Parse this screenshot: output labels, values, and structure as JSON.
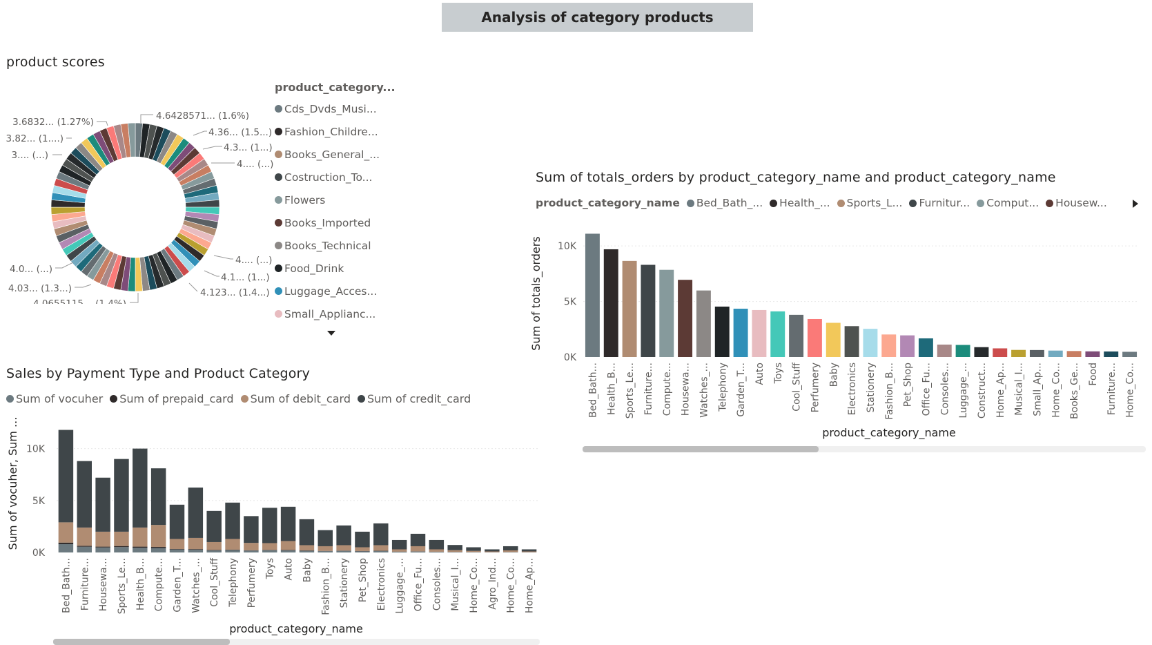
{
  "page": {
    "title": "Analysis of category products"
  },
  "colors": {
    "series": [
      "#6c7a80",
      "#2f2a2a",
      "#b08c72",
      "#3f4649",
      "#869a9c",
      "#5c3a35",
      "#8c8886",
      "#1f2426",
      "#3090b8",
      "#e8bcc0",
      "#44c8b8",
      "#646c70",
      "#fa7a78",
      "#f2c85a",
      "#4e5250",
      "#a6dcea",
      "#fca890",
      "#b288b4",
      "#1e6a7a",
      "#a88888",
      "#1c8c7c",
      "#262a2c",
      "#cc4c4c",
      "#baa030",
      "#5a6064",
      "#72aac0",
      "#c87e62",
      "#7e4c78",
      "#1c4c5c"
    ],
    "vocuher": "#6c7a80",
    "prepaid": "#2f2a2a",
    "debit": "#b08c72",
    "credit": "#3f4649",
    "scrollbar_thumb": "#bdbdbd",
    "scrollbar_track": "#f0f0f0"
  },
  "donut": {
    "title": "product scores",
    "legend_title": "product_category...",
    "legend_items": [
      {
        "label": "Cds_Dvds_Musi...",
        "color": "#6c7a80"
      },
      {
        "label": "Fashion_Childre...",
        "color": "#2f2a2a"
      },
      {
        "label": "Books_General_...",
        "color": "#b08c72"
      },
      {
        "label": "Costruction_To...",
        "color": "#3f4649"
      },
      {
        "label": "Flowers",
        "color": "#869a9c"
      },
      {
        "label": "Books_Imported",
        "color": "#5c3a35"
      },
      {
        "label": "Books_Technical",
        "color": "#8c8886"
      },
      {
        "label": "Food_Drink",
        "color": "#1f2426"
      },
      {
        "label": "Luggage_Acces...",
        "color": "#3090b8"
      },
      {
        "label": "Small_Applianc...",
        "color": "#e8bcc0"
      }
    ],
    "scroll_icon": "triangle-down-icon",
    "labels": [
      {
        "text": "4.6428571... (1.6%)"
      },
      {
        "text": "4.36... (1.5...)"
      },
      {
        "text": "4.3... (1...)"
      },
      {
        "text": "4.... (...)"
      },
      {
        "text": "4.... (...)"
      },
      {
        "text": "4.1... (1...)"
      },
      {
        "text": "4.123... (1.4...)"
      },
      {
        "text": "4.0655115... (1.4%)"
      },
      {
        "text": "4.03... (1.3...)"
      },
      {
        "text": "4.0... (...)"
      },
      {
        "text": "3.... (...)"
      },
      {
        "text": "3.82... (1....)"
      },
      {
        "text": "3.6832... (1.27%)"
      }
    ]
  },
  "orders_chart": {
    "legend_title": "product_category_name",
    "legend_items": [
      {
        "label": "Bed_Bath_...",
        "color": "#6c7a80"
      },
      {
        "label": "Health_...",
        "color": "#2f2a2a"
      },
      {
        "label": "Sports_L...",
        "color": "#b08c72"
      },
      {
        "label": "Furnitur...",
        "color": "#3f4649"
      },
      {
        "label": "Comput...",
        "color": "#869a9c"
      },
      {
        "label": "Housew...",
        "color": "#5c3a35"
      }
    ],
    "legend_next_icon": "triangle-right-icon"
  },
  "payment_chart": {
    "legend_items": [
      {
        "label": "Sum of vocuher",
        "color": "#6c7a80"
      },
      {
        "label": "Sum of prepaid_card",
        "color": "#2f2a2a"
      },
      {
        "label": "Sum of debit_card",
        "color": "#b08c72"
      },
      {
        "label": "Sum of credit_card",
        "color": "#3f4649"
      }
    ]
  },
  "chart_data": [
    {
      "type": "pie",
      "title": "product scores",
      "legend_title": "product_category...",
      "slice_count": 72,
      "visible_categories": [
        "Cds_Dvds_Musi...",
        "Fashion_Childre...",
        "Books_General_...",
        "Costruction_To...",
        "Flowers",
        "Books_Imported",
        "Books_Technical",
        "Food_Drink",
        "Luggage_Acces...",
        "Small_Applianc..."
      ],
      "labeled_values": [
        4.6428571,
        4.36,
        4.3,
        4.123,
        4.1,
        4.0655115,
        4.03,
        4.0,
        3.82,
        3.6832
      ],
      "labeled_percents": [
        1.6,
        1.5,
        1.4,
        1.4,
        1.3,
        1.27
      ]
    },
    {
      "type": "bar",
      "title": "Sum of totals_orders by product_category_name and product_category_name",
      "xlabel": "product_category_name",
      "ylabel": "Sum of totals_orders",
      "yticks": [
        "0K",
        "5K",
        "10K"
      ],
      "ylim": [
        0,
        11500
      ],
      "categories": [
        "Bed_Bath...",
        "Health_B...",
        "Sports_Le...",
        "Furniture...",
        "Compute...",
        "Housewa...",
        "Watches_...",
        "Telephony",
        "Garden_T...",
        "Auto",
        "Toys",
        "Cool_Stuff",
        "Perfumery",
        "Baby",
        "Electronics",
        "Stationery",
        "Fashion_B...",
        "Pet_Shop",
        "Office_Fu...",
        "Consoles...",
        "Luggage_...",
        "Construct...",
        "Home_Ap...",
        "Musical_I...",
        "Small_Ap...",
        "Home_Co...",
        "Books_Ge...",
        "Food",
        "Furniture...",
        "Home_Co..."
      ],
      "values": [
        11100,
        9700,
        8650,
        8300,
        7850,
        6950,
        5990,
        4540,
        4350,
        4230,
        4110,
        3800,
        3420,
        3080,
        2780,
        2540,
        2030,
        1950,
        1680,
        1120,
        1090,
        890,
        780,
        640,
        630,
        580,
        540,
        510,
        500,
        470
      ]
    },
    {
      "type": "bar",
      "stacked": true,
      "title": "Sales by Payment Type and Product Category",
      "xlabel": "product_category_name",
      "ylabel": "Sum of vocuher, Sum ...",
      "yticks": [
        "0K",
        "5K",
        "10K"
      ],
      "ylim": [
        0,
        12500
      ],
      "categories": [
        "Bed_Bath...",
        "Furniture...",
        "Housewa...",
        "Sports_Le...",
        "Health_B...",
        "Compute...",
        "Garden_T...",
        "Watches_...",
        "Cool_Stuff",
        "Telephony",
        "Perfumery",
        "Toys",
        "Auto",
        "Baby",
        "Fashion_B...",
        "Stationery",
        "Pet_Shop",
        "Electronics",
        "Luggage_...",
        "Office_Fu...",
        "Consoles...",
        "Musical_I...",
        "Home_Co...",
        "Agro_Ind...",
        "Home_Co...",
        "Home_Ap..."
      ],
      "series": [
        {
          "name": "Sum of vocuher",
          "values": [
            800,
            550,
            480,
            520,
            450,
            420,
            280,
            260,
            200,
            230,
            180,
            210,
            200,
            160,
            120,
            150,
            110,
            140,
            70,
            90,
            60,
            40,
            30,
            20,
            30,
            20
          ]
        },
        {
          "name": "Sum of prepaid_card",
          "values": [
            150,
            90,
            80,
            100,
            110,
            110,
            50,
            60,
            40,
            40,
            35,
            40,
            40,
            35,
            25,
            30,
            25,
            30,
            15,
            20,
            15,
            10,
            10,
            5,
            10,
            5
          ]
        },
        {
          "name": "Sum of debit_card",
          "values": [
            1950,
            1760,
            1440,
            1380,
            1840,
            2120,
            970,
            1080,
            760,
            1030,
            705,
            650,
            860,
            505,
            455,
            520,
            365,
            530,
            215,
            490,
            225,
            170,
            110,
            75,
            160,
            75
          ]
        },
        {
          "name": "Sum of credit_card",
          "values": [
            8900,
            6400,
            5200,
            7000,
            7600,
            5450,
            3300,
            4850,
            3000,
            3500,
            2580,
            3400,
            3300,
            2500,
            1550,
            1900,
            1500,
            2100,
            900,
            1200,
            900,
            500,
            350,
            200,
            400,
            200
          ]
        }
      ]
    }
  ]
}
